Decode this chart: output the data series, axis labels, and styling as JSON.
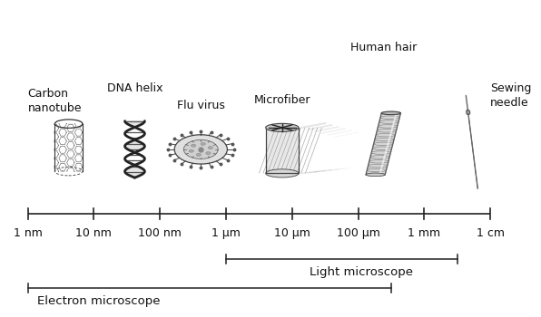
{
  "background_color": "#ffffff",
  "scale_labels": [
    "1 nm",
    "10 nm",
    "100 nm",
    "1 μm",
    "10 μm",
    "100 μm",
    "1 mm",
    "1 cm"
  ],
  "scale_positions": [
    0,
    1,
    2,
    3,
    4,
    5,
    6,
    7
  ],
  "line_color": "#222222",
  "text_color": "#111111",
  "fontsize_scale": 9,
  "fontsize_label": 9,
  "fontsize_microscope": 9.5,
  "electron_label": "Electron microscope",
  "light_label": "Light microscope",
  "lm_start": 3.0,
  "lm_end": 6.5,
  "em_start": 0.0,
  "em_end": 5.5,
  "bar_y": 0.0,
  "lm_y": -1.25,
  "em_y": -2.05,
  "xmin": -0.4,
  "xmax": 7.6,
  "ymin": -2.8,
  "ymax": 5.8
}
